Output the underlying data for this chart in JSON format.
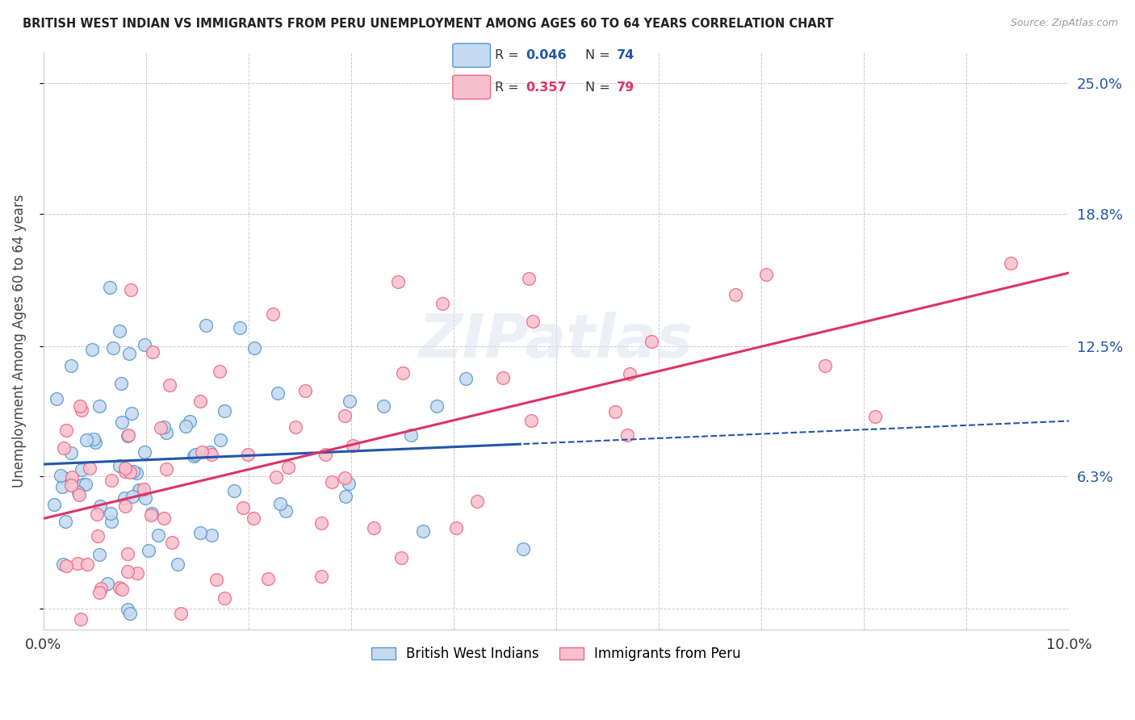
{
  "title": "BRITISH WEST INDIAN VS IMMIGRANTS FROM PERU UNEMPLOYMENT AMONG AGES 60 TO 64 YEARS CORRELATION CHART",
  "source": "Source: ZipAtlas.com",
  "ylabel": "Unemployment Among Ages 60 to 64 years",
  "xlim": [
    0.0,
    0.1
  ],
  "ylim": [
    -0.01,
    0.265
  ],
  "plot_ylim": [
    0.0,
    0.25
  ],
  "ytick_positions": [
    0.0,
    0.063,
    0.125,
    0.188,
    0.25
  ],
  "ytick_labels": [
    "",
    "6.3%",
    "12.5%",
    "18.8%",
    "25.0%"
  ],
  "color_blue_fill": "#c5d9f0",
  "color_blue_edge": "#5599cc",
  "color_pink_fill": "#f8c0cc",
  "color_pink_edge": "#ee6688",
  "trend_blue_color": "#2255aa",
  "trend_pink_color": "#dd3366",
  "watermark": "ZIPatlas",
  "N_blue": 74,
  "N_pink": 79,
  "R_blue": 0.046,
  "R_pink": 0.357,
  "background_color": "#ffffff",
  "grid_color": "#cccccc",
  "legend_label_blue": "British West Indians",
  "legend_label_pink": "Immigrants from Peru",
  "legend_R1": "R =",
  "legend_V1": "0.046",
  "legend_N1_label": "N =",
  "legend_N1_val": "74",
  "legend_R2": "R =",
  "legend_V2": "0.357",
  "legend_N2_label": "N =",
  "legend_N2_val": "79"
}
